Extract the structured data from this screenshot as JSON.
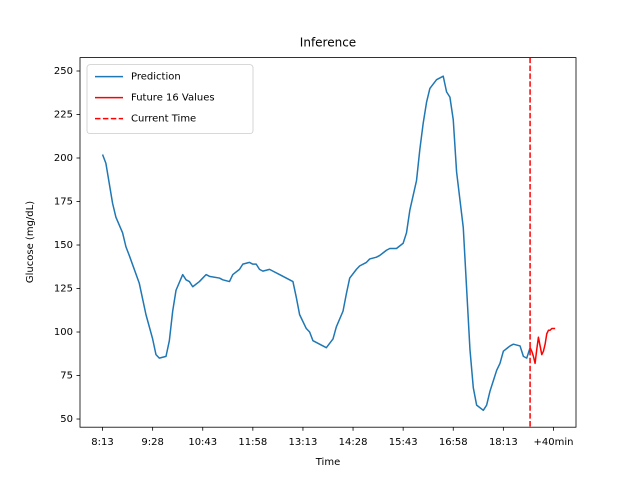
{
  "chart_data": {
    "type": "line",
    "title": "Inference",
    "xlabel": "Time",
    "ylabel": "Glucose (mg/dL)",
    "xlim": [
      -6.75,
      141.75
    ],
    "ylim": [
      45.3,
      257.7
    ],
    "xticks": [
      {
        "value": 0,
        "label": "8:13"
      },
      {
        "value": 15,
        "label": "9:28"
      },
      {
        "value": 30,
        "label": "10:43"
      },
      {
        "value": 45,
        "label": "11:58"
      },
      {
        "value": 60,
        "label": "13:13"
      },
      {
        "value": 75,
        "label": "14:28"
      },
      {
        "value": 90,
        "label": "15:43"
      },
      {
        "value": 105,
        "label": "16:58"
      },
      {
        "value": 120,
        "label": "18:13"
      },
      {
        "value": 135,
        "label": "+40min"
      }
    ],
    "yticks": [
      50,
      75,
      100,
      125,
      150,
      175,
      200,
      225,
      250
    ],
    "grid": false,
    "legend": "upper left",
    "series": [
      {
        "name": "Prediction",
        "color": "#1f77b4",
        "x": [
          0,
          1,
          3,
          4,
          6,
          7,
          8,
          11,
          13,
          15,
          16,
          17,
          19,
          20,
          21,
          22,
          24,
          25,
          26,
          27,
          29,
          30,
          31,
          32,
          35,
          36,
          38,
          39,
          41,
          42,
          44,
          45,
          46,
          47,
          48,
          50,
          51,
          53,
          55,
          57,
          58,
          59,
          61,
          62,
          63,
          65,
          66,
          67,
          69,
          70,
          72,
          73,
          74,
          76,
          77,
          79,
          80,
          82,
          83,
          85,
          86,
          88,
          90,
          91,
          92,
          94,
          95,
          96,
          97,
          98,
          100,
          102,
          103,
          104,
          105,
          106,
          108,
          109,
          110,
          111,
          112,
          114,
          115,
          116,
          117,
          118,
          119,
          120,
          122,
          123,
          125,
          126,
          127,
          128
        ],
        "values": [
          202,
          197,
          174,
          166,
          157,
          149,
          144,
          128,
          110,
          96,
          87,
          85,
          86,
          95,
          112,
          124,
          133,
          130,
          129,
          126,
          129,
          131,
          133,
          132,
          131,
          130,
          129,
          133,
          136,
          139,
          140,
          139,
          139,
          136,
          135,
          136,
          135,
          133,
          131,
          129,
          120,
          110,
          102,
          100,
          95,
          93,
          92,
          91,
          96,
          103,
          112,
          122,
          131,
          136,
          138,
          140,
          142,
          143,
          144,
          147,
          148,
          148,
          151,
          157,
          170,
          187,
          205,
          220,
          232,
          240,
          245,
          247,
          238,
          235,
          222,
          192,
          160,
          125,
          90,
          68,
          58,
          55,
          58,
          66,
          72,
          78,
          82,
          89,
          92,
          93,
          92,
          86,
          85,
          91
        ]
      },
      {
        "name": "Future 16 Values",
        "color": "#ff0000",
        "x": [
          128,
          128.5,
          129,
          129.5,
          130,
          130.5,
          131,
          131.5,
          132,
          132.5,
          133,
          133.5,
          134,
          134.5,
          135,
          135.5
        ],
        "values": [
          91,
          89,
          86,
          82,
          90,
          97,
          92,
          87,
          89,
          93,
          99,
          101,
          101,
          102,
          102,
          102
        ]
      }
    ],
    "vlines": [
      {
        "name": "Current Time",
        "x": 128,
        "color": "#ff0000"
      }
    ]
  }
}
